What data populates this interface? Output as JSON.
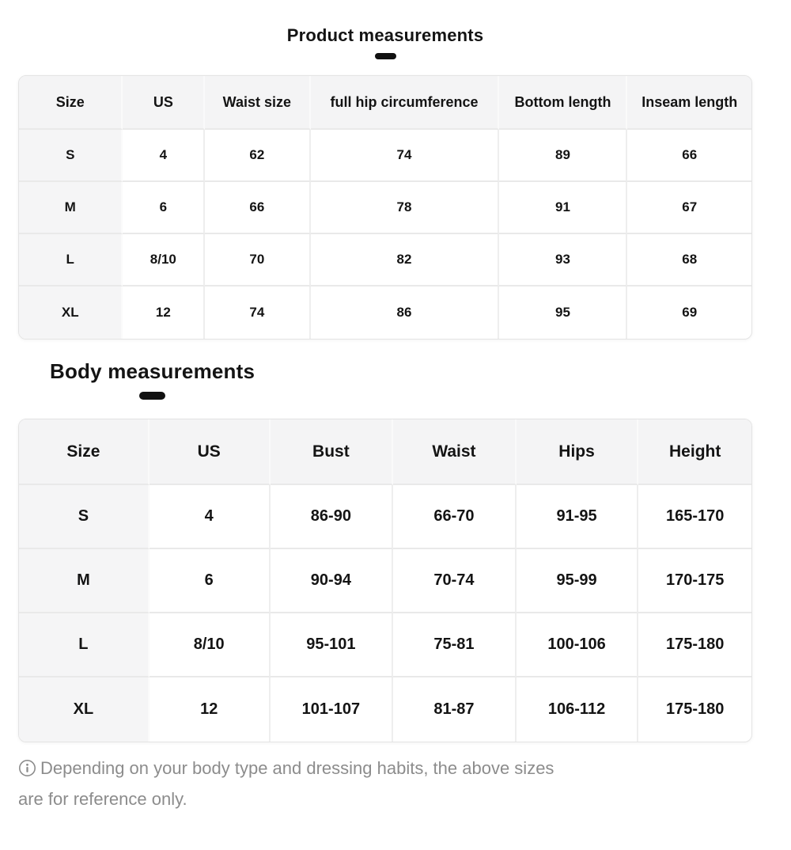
{
  "product_section": {
    "title": "Product measurements",
    "table": {
      "columns": [
        "Size",
        "US",
        "Waist size",
        "full hip circumference",
        "Bottom length",
        "Inseam length"
      ],
      "rows": [
        [
          "S",
          "4",
          "62",
          "74",
          "89",
          "66"
        ],
        [
          "M",
          "6",
          "66",
          "78",
          "91",
          "67"
        ],
        [
          "L",
          "8/10",
          "70",
          "82",
          "93",
          "68"
        ],
        [
          "XL",
          "12",
          "74",
          "86",
          "95",
          "69"
        ]
      ]
    }
  },
  "body_section": {
    "title": "Body measurements",
    "table": {
      "columns": [
        "Size",
        "US",
        "Bust",
        "Waist",
        "Hips",
        "Height"
      ],
      "rows": [
        [
          "S",
          "4",
          "86-90",
          "66-70",
          "91-95",
          "165-170"
        ],
        [
          "M",
          "6",
          "90-94",
          "70-74",
          "95-99",
          "170-175"
        ],
        [
          "L",
          "8/10",
          "95-101",
          "75-81",
          "100-106",
          "175-180"
        ],
        [
          "XL",
          "12",
          "101-107",
          "81-87",
          "106-112",
          "175-180"
        ]
      ]
    }
  },
  "footnote": {
    "icon": "info-icon",
    "text": "Depending on your body type and dressing habits, the above sizes are for reference only."
  },
  "colors": {
    "text": "#141414",
    "header_bg": "#f4f4f5",
    "row_header_bg": "#f5f5f6",
    "border_h": "#e9e9e9",
    "dash": "#111111",
    "footnote": "#8c8c8c"
  }
}
